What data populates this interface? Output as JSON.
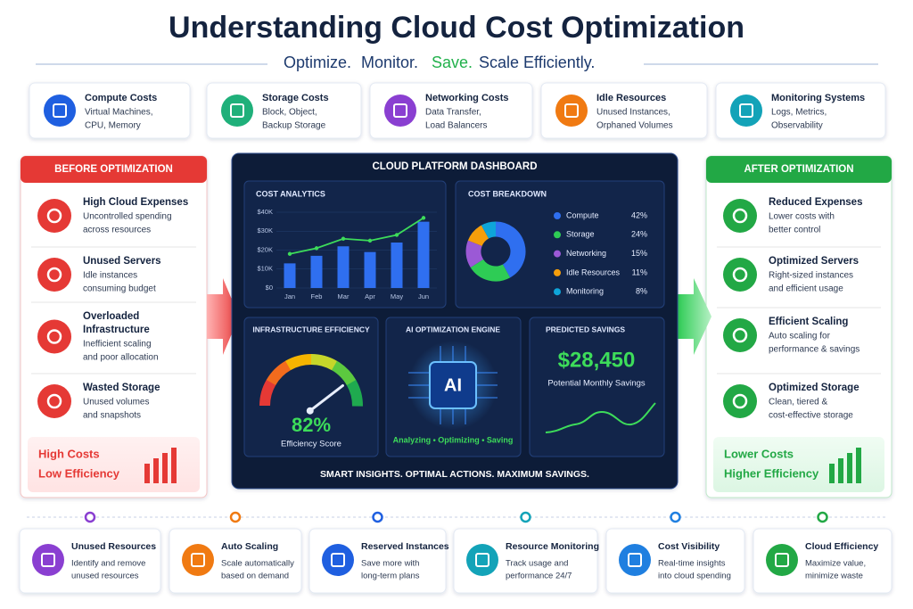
{
  "header": {
    "title": "Understanding Cloud Cost Optimization",
    "tagline": [
      "Optimize.",
      "Monitor.",
      "Save.",
      "Scale Efficiently."
    ]
  },
  "cost_categories": [
    {
      "title": "Compute Costs",
      "desc": [
        "Virtual Machines,",
        "CPU, Memory"
      ]
    },
    {
      "title": "Storage Costs",
      "desc": [
        "Block, Object,",
        "Backup Storage"
      ]
    },
    {
      "title": "Networking Costs",
      "desc": [
        "Data Transfer,",
        "Load Balancers"
      ]
    },
    {
      "title": "Idle Resources",
      "desc": [
        "Unused Instances,",
        "Orphaned Volumes"
      ]
    },
    {
      "title": "Monitoring Systems",
      "desc": [
        "Logs, Metrics,",
        "Observability"
      ]
    }
  ],
  "before": {
    "title": "BEFORE OPTIMIZATION",
    "items": [
      {
        "title": [
          "High Cloud Expenses"
        ],
        "desc": [
          "Uncontrolled spending",
          "across resources"
        ]
      },
      {
        "title": [
          "Unused Servers"
        ],
        "desc": [
          "Idle instances",
          "consuming budget"
        ]
      },
      {
        "title": [
          "Overloaded",
          "Infrastructure"
        ],
        "desc": [
          "Inefficient scaling",
          "and poor allocation"
        ]
      },
      {
        "title": [
          "Wasted Storage"
        ],
        "desc": [
          "Unused volumes",
          "and snapshots"
        ]
      }
    ],
    "summary": [
      "High Costs",
      "Low Efficiency"
    ]
  },
  "after": {
    "title": "AFTER OPTIMIZATION",
    "items": [
      {
        "title": [
          "Reduced Expenses"
        ],
        "desc": [
          "Lower costs with",
          "better control"
        ]
      },
      {
        "title": [
          "Optimized Servers"
        ],
        "desc": [
          "Right-sized instances",
          "and efficient usage"
        ]
      },
      {
        "title": [
          "Efficient Scaling"
        ],
        "desc": [
          "Auto scaling for",
          "performance & savings"
        ]
      },
      {
        "title": [
          "Optimized Storage"
        ],
        "desc": [
          "Clean, tiered &",
          "cost-effective storage"
        ]
      }
    ],
    "summary": [
      "Lower Costs",
      "Higher Efficiency"
    ]
  },
  "dashboard": {
    "title": "CLOUD PLATFORM DASHBOARD",
    "ai": {
      "title": "AI OPTIMIZATION ENGINE",
      "chip": "AI",
      "caption": "Analyzing • Optimizing • Saving"
    },
    "savings": {
      "title": "PREDICTED SAVINGS",
      "amount": "$28,450",
      "caption": "Potential Monthly Savings"
    },
    "footer": "SMART INSIGHTS. OPTIMAL ACTIONS. MAXIMUM SAVINGS."
  },
  "chart_data": [
    {
      "type": "bar",
      "title": "COST ANALYTICS",
      "categories": [
        "Jan",
        "Feb",
        "Mar",
        "Apr",
        "May",
        "Jun"
      ],
      "series": [
        {
          "type": "bar",
          "color": "#2f6ff0",
          "values": [
            13000,
            17000,
            22000,
            19000,
            24000,
            35000
          ]
        },
        {
          "type": "line",
          "color": "#3ddc5a",
          "values": [
            18000,
            21000,
            26000,
            25000,
            28000,
            37000
          ]
        }
      ],
      "ylim": [
        0,
        40000
      ],
      "yticks": [
        {
          "value": 0,
          "label": "$0"
        },
        {
          "value": 10000,
          "label": "$10K"
        },
        {
          "value": 20000,
          "label": "$20K"
        },
        {
          "value": 30000,
          "label": "$30K"
        },
        {
          "value": 40000,
          "label": "$40K"
        }
      ]
    },
    {
      "type": "pie",
      "title": "COST BREAKDOWN",
      "categories": [
        "Compute",
        "Storage",
        "Networking",
        "Idle Resources",
        "Monitoring"
      ],
      "values": [
        42,
        24,
        15,
        11,
        8
      ],
      "value_labels": [
        "42%",
        "24%",
        "15%",
        "11%",
        "8%"
      ],
      "colors": [
        "#2f6ff0",
        "#2ecc55",
        "#9b59d6",
        "#f59e0b",
        "#0ea5d9"
      ]
    },
    {
      "type": "gauge",
      "title": "INFRASTRUCTURE EFFICIENCY",
      "value": 82,
      "value_label": "82%",
      "label": "Efficiency Score",
      "ylim": [
        0,
        100
      ]
    }
  ],
  "bottom": [
    {
      "title": "Unused Resources",
      "desc": [
        "Identify and remove",
        "unused resources"
      ]
    },
    {
      "title": "Auto Scaling",
      "desc": [
        "Scale automatically",
        "based on demand"
      ]
    },
    {
      "title": "Reserved Instances",
      "desc": [
        "Save more with",
        "long-term plans"
      ]
    },
    {
      "title": "Resource Monitoring",
      "desc": [
        "Track usage and",
        "performance 24/7"
      ]
    },
    {
      "title": "Cost Visibility",
      "desc": [
        "Real-time insights",
        "into cloud spending"
      ]
    },
    {
      "title": "Cloud Efficiency",
      "desc": [
        "Maximize value,",
        "minimize waste"
      ]
    }
  ]
}
